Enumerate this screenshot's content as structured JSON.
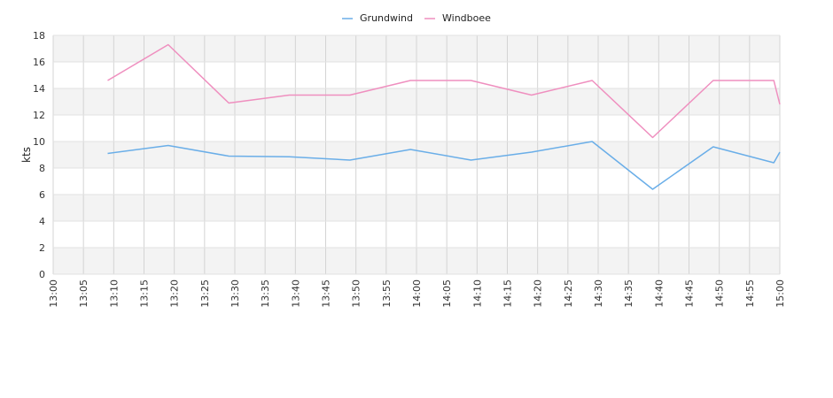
{
  "chart_data": {
    "type": "line",
    "ylabel": "kts",
    "xlabel": "",
    "ylim": [
      0,
      18
    ],
    "y_ticks": [
      "0",
      "2",
      "4",
      "6",
      "8",
      "10",
      "12",
      "14",
      "16",
      "18"
    ],
    "x_ticks": [
      "13:00",
      "13:05",
      "13:10",
      "13:15",
      "13:20",
      "13:25",
      "13:30",
      "13:35",
      "13:40",
      "13:45",
      "13:50",
      "13:55",
      "14:00",
      "14:05",
      "14:10",
      "14:15",
      "14:20",
      "14:25",
      "14:30",
      "14:35",
      "14:40",
      "14:45",
      "14:50",
      "14:55",
      "15:00"
    ],
    "xlim": [
      "13:00",
      "15:00"
    ],
    "grid": true,
    "legend_position": "top-center",
    "series": [
      {
        "name": "Grundwind",
        "color": "#6aaee8",
        "x": [
          "13:09",
          "13:19",
          "13:29",
          "13:39",
          "13:49",
          "13:59",
          "14:09",
          "14:19",
          "14:29",
          "14:39",
          "14:49",
          "14:59",
          "15:00"
        ],
        "values": [
          9.1,
          9.7,
          8.9,
          8.85,
          8.6,
          9.4,
          8.6,
          9.2,
          10.0,
          6.4,
          9.6,
          8.4,
          9.2
        ]
      },
      {
        "name": "Windboee",
        "color": "#ef8fbf",
        "x": [
          "13:09",
          "13:19",
          "13:29",
          "13:39",
          "13:49",
          "13:59",
          "14:09",
          "14:19",
          "14:29",
          "14:39",
          "14:49",
          "14:59",
          "15:00"
        ],
        "values": [
          14.6,
          17.3,
          12.9,
          13.5,
          13.5,
          14.6,
          14.6,
          13.5,
          14.6,
          10.3,
          14.6,
          14.6,
          12.8
        ]
      }
    ]
  }
}
